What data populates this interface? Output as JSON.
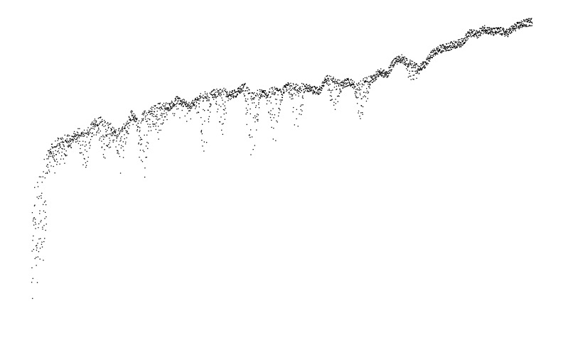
{
  "chart_data": {
    "type": "scatter",
    "title": "",
    "xlabel": "",
    "ylabel": "",
    "axes_visible": false,
    "grid": false,
    "legend": "none",
    "marker": "dot",
    "marker_color": "#000000",
    "xlim": [
      0,
      1
    ],
    "ylim": [
      0,
      1
    ],
    "series": [
      {
        "upper_envelope": {
          "x": [
            0.0,
            0.01,
            0.02,
            0.03,
            0.045,
            0.06,
            0.075,
            0.085,
            0.095,
            0.11,
            0.125,
            0.14,
            0.15,
            0.16,
            0.17,
            0.18,
            0.19,
            0.2,
            0.21,
            0.22,
            0.23,
            0.245,
            0.26,
            0.275,
            0.29,
            0.305,
            0.32,
            0.335,
            0.35,
            0.365,
            0.38,
            0.395,
            0.41,
            0.425,
            0.44,
            0.455,
            0.47,
            0.485,
            0.5,
            0.515,
            0.53,
            0.545,
            0.56,
            0.575,
            0.59,
            0.605,
            0.62,
            0.635,
            0.65,
            0.665,
            0.68,
            0.695,
            0.71,
            0.725,
            0.74,
            0.755,
            0.77,
            0.785,
            0.8,
            0.815,
            0.83,
            0.845,
            0.86,
            0.875,
            0.89,
            0.905,
            0.92,
            0.935,
            0.95,
            0.965,
            0.98,
            1.0
          ],
          "y": [
            0.56,
            0.65,
            0.72,
            0.74,
            0.77,
            0.79,
            0.8,
            0.81,
            0.83,
            0.82,
            0.86,
            0.87,
            0.85,
            0.84,
            0.81,
            0.84,
            0.85,
            0.9,
            0.87,
            0.88,
            0.91,
            0.92,
            0.935,
            0.93,
            0.96,
            0.945,
            0.94,
            0.97,
            0.985,
            0.99,
            1.0,
            0.98,
            0.99,
            1.02,
            0.975,
            0.99,
            0.99,
            1.0,
            0.995,
            1.03,
            1.01,
            1.02,
            1.005,
            1.0,
            1.06,
            1.04,
            1.03,
            1.04,
            1.015,
            1.04,
            1.05,
            1.08,
            1.07,
            1.13,
            1.14,
            1.12,
            1.1,
            1.11,
            1.16,
            1.18,
            1.19,
            1.2,
            1.21,
            1.25,
            1.245,
            1.27,
            1.255,
            1.26,
            1.25,
            1.275,
            1.29,
            1.3
          ]
        },
        "absorption_dips": [
          {
            "x": 0.105,
            "depth": 0.22
          },
          {
            "x": 0.145,
            "depth": 0.18
          },
          {
            "x": 0.18,
            "depth": 0.16
          },
          {
            "x": 0.225,
            "depth": 0.26
          },
          {
            "x": 0.255,
            "depth": 0.14
          },
          {
            "x": 0.345,
            "depth": 0.22
          },
          {
            "x": 0.38,
            "depth": 0.2
          },
          {
            "x": 0.44,
            "depth": 0.34
          },
          {
            "x": 0.485,
            "depth": 0.25
          },
          {
            "x": 0.53,
            "depth": 0.24
          },
          {
            "x": 0.605,
            "depth": 0.15
          },
          {
            "x": 0.66,
            "depth": 0.18
          },
          {
            "x": 0.76,
            "depth": 0.09
          }
        ]
      }
    ]
  }
}
